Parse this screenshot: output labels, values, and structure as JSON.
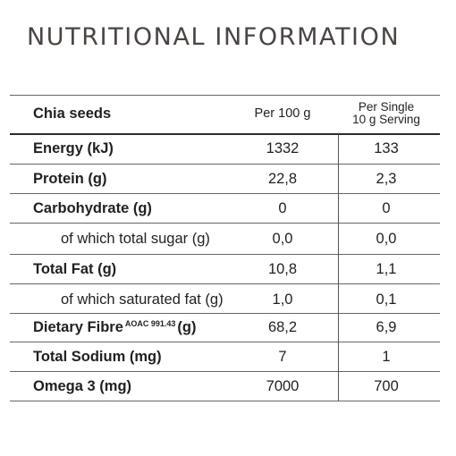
{
  "title": "NUTRITIONAL INFORMATION",
  "table": {
    "product": "Chia seeds",
    "col1_header": "Per 100 g",
    "col2_header_line1": "Per Single",
    "col2_header_line2": "10 g Serving",
    "rows": [
      {
        "label": "Energy (kJ)",
        "per100": "1332",
        "serving": "133"
      },
      {
        "label": "Protein (g)",
        "per100": "22,8",
        "serving": "2,3"
      },
      {
        "label": "Carbohydrate (g)",
        "per100": "0",
        "serving": "0"
      },
      {
        "label": "of which total sugar (g)",
        "per100": "0,0",
        "serving": "0,0"
      },
      {
        "label": "Total Fat (g)",
        "per100": "10,8",
        "serving": "1,1"
      },
      {
        "label": "of which saturated fat (g)",
        "per100": "1,0",
        "serving": "0,1"
      },
      {
        "label": "Dietary Fibre",
        "standard": "AOAC 991.43",
        "unit": "(g)",
        "per100": "68,2",
        "serving": "6,9"
      },
      {
        "label": "Total Sodium (mg)",
        "per100": "7",
        "serving": "1"
      },
      {
        "label": "Omega 3 (mg)",
        "per100": "7000",
        "serving": "700"
      }
    ]
  }
}
